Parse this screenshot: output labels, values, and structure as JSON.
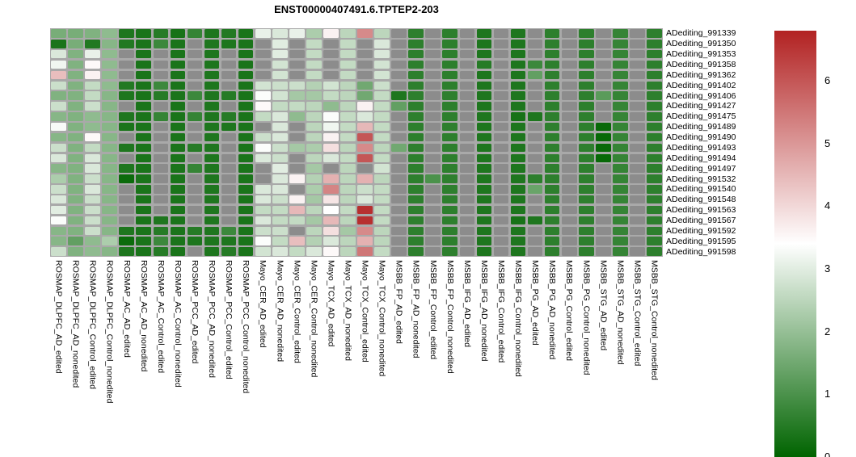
{
  "chart_data": {
    "type": "heatmap",
    "title": "ENST00000407491.6.TPTEP2-203",
    "legend_position": "right",
    "colorscale": {
      "min": 0,
      "max": 6.8,
      "white_point": 3.4,
      "low_color": "#006400",
      "mid_color": "#ffffff",
      "high_color": "#b22222",
      "missing_color": "#8c8c8c",
      "gap_color": "#a9a9a9",
      "ticks": [
        0,
        1,
        2,
        3,
        4,
        5,
        6
      ]
    },
    "rows": [
      "ADediting_991339",
      "ADediting_991350",
      "ADediting_991353",
      "ADediting_991358",
      "ADediting_991362",
      "ADediting_991402",
      "ADediting_991406",
      "ADediting_991427",
      "ADediting_991475",
      "ADediting_991489",
      "ADediting_991490",
      "ADediting_991493",
      "ADediting_991494",
      "ADediting_991497",
      "ADediting_991532",
      "ADediting_991540",
      "ADediting_991548",
      "ADediting_991563",
      "ADediting_991567",
      "ADediting_991592",
      "ADediting_991595",
      "ADediting_991598"
    ],
    "columns": [
      "ROSMAP_DLPFC_AD_edited",
      "ROSMAP_DLPFC_AD_nonedited",
      "ROSMAP_DLPFC_Control_edited",
      "ROSMAP_DLPFC_Control_nonedited",
      "ROSMAP_AC_AD_edited",
      "ROSMAP_AC_AD_nonedited",
      "ROSMAP_AC_Control_edited",
      "ROSMAP_AC_Control_nonedited",
      "ROSMAP_PCC_AD_edited",
      "ROSMAP_PCC_AD_nonedited",
      "ROSMAP_PCC_Control_edited",
      "ROSMAP_PCC_Control_nonedited",
      "Mayo_CER_AD_edited",
      "Mayo_CER_AD_nonedited",
      "Mayo_CER_Control_edited",
      "Mayo_CER_Control_nonedited",
      "Mayo_TCX_AD_edited",
      "Mayo_TCX_AD_nonedited",
      "Mayo_TCX_Control_edited",
      "Mayo_TCX_Control_nonedited",
      "MSBB_FP_AD_edited",
      "MSBB_FP_AD_nonedited",
      "MSBB_FP_Control_edited",
      "MSBB_FP_Control_nonedited",
      "MSBB_IFG_AD_edited",
      "MSBB_IFG_AD_nonedited",
      "MSBB_IFG_Control_edited",
      "MSBB_IFG_Control_nonedited",
      "MSBB_PG_AD_edited",
      "MSBB_PG_AD_nonedited",
      "MSBB_PG_Control_edited",
      "MSBB_PG_Control_nonedited",
      "MSBB_STG_AD_edited",
      "MSBB_STG_AD_nonedited",
      "MSBB_STG_Control_edited",
      "MSBB_STG_Control_nonedited"
    ],
    "values": [
      [
        1.6,
        1.6,
        1.7,
        1.9,
        0.4,
        0.35,
        0.5,
        0.3,
        0.7,
        0.4,
        0.45,
        0.35,
        3.1,
        2.9,
        3.1,
        2.3,
        3.6,
        2.5,
        5.2,
        2.5,
        null,
        0.6,
        null,
        0.6,
        null,
        0.4,
        null,
        0.4,
        null,
        0.6,
        null,
        0.6,
        null,
        0.7,
        null,
        0.6
      ],
      [
        0.35,
        1.6,
        0.45,
        1.8,
        0.45,
        0.35,
        0.8,
        0.35,
        null,
        0.4,
        0.4,
        0.35,
        null,
        3.0,
        null,
        2.6,
        null,
        2.6,
        null,
        2.9,
        null,
        0.6,
        null,
        0.6,
        null,
        0.4,
        null,
        0.4,
        null,
        0.6,
        null,
        0.6,
        null,
        0.7,
        null,
        0.6
      ],
      [
        2.9,
        1.7,
        3.1,
        1.9,
        null,
        0.35,
        null,
        0.35,
        null,
        0.4,
        null,
        0.35,
        null,
        3.0,
        null,
        2.6,
        null,
        2.6,
        null,
        2.9,
        null,
        0.6,
        null,
        0.6,
        null,
        0.4,
        null,
        0.4,
        null,
        0.6,
        null,
        0.6,
        null,
        0.7,
        null,
        0.6
      ],
      [
        3.2,
        1.7,
        3.5,
        1.9,
        null,
        0.35,
        null,
        0.35,
        null,
        0.4,
        null,
        0.35,
        null,
        2.8,
        null,
        2.6,
        null,
        2.6,
        null,
        2.8,
        null,
        0.6,
        null,
        0.6,
        null,
        0.5,
        null,
        0.4,
        0.8,
        0.6,
        null,
        0.6,
        null,
        0.7,
        null,
        0.6
      ],
      [
        4.4,
        1.7,
        3.6,
        1.9,
        null,
        0.35,
        null,
        0.35,
        null,
        0.4,
        null,
        0.35,
        null,
        2.8,
        null,
        2.6,
        null,
        2.6,
        null,
        2.8,
        null,
        0.6,
        null,
        0.6,
        null,
        0.4,
        null,
        0.4,
        1.3,
        0.6,
        null,
        0.6,
        null,
        0.7,
        null,
        0.6
      ],
      [
        2.7,
        1.7,
        2.6,
        1.9,
        0.45,
        0.35,
        0.8,
        0.35,
        null,
        0.4,
        null,
        0.35,
        2.8,
        2.7,
        2.7,
        2.4,
        2.8,
        2.5,
        1.5,
        2.7,
        null,
        0.6,
        null,
        0.6,
        null,
        0.4,
        null,
        0.4,
        null,
        0.6,
        null,
        0.6,
        null,
        0.7,
        null,
        0.6
      ],
      [
        1.7,
        1.7,
        2.6,
        1.8,
        0.4,
        0.35,
        0.5,
        0.35,
        0.8,
        0.4,
        0.5,
        0.35,
        3.35,
        2.8,
        2.2,
        2.2,
        2.6,
        2.5,
        1.5,
        2.6,
        0.4,
        0.6,
        null,
        0.6,
        null,
        0.4,
        null,
        0.4,
        null,
        0.6,
        null,
        0.6,
        1.2,
        0.7,
        null,
        0.6
      ],
      [
        2.7,
        1.7,
        2.7,
        1.8,
        null,
        0.35,
        null,
        0.35,
        null,
        0.4,
        null,
        0.35,
        3.5,
        2.6,
        2.6,
        2.5,
        1.9,
        2.5,
        3.6,
        2.6,
        1.3,
        0.6,
        null,
        0.6,
        null,
        0.4,
        null,
        0.4,
        null,
        0.6,
        null,
        0.6,
        null,
        0.7,
        null,
        0.6
      ],
      [
        1.8,
        1.7,
        1.9,
        1.8,
        0.4,
        0.35,
        0.7,
        0.35,
        0.7,
        0.4,
        0.5,
        0.35,
        2.6,
        2.9,
        1.9,
        2.5,
        3.35,
        2.6,
        2.9,
        2.6,
        null,
        0.6,
        null,
        0.6,
        null,
        0.4,
        null,
        0.3,
        0.4,
        0.6,
        null,
        0.6,
        null,
        0.7,
        null,
        0.6
      ],
      [
        3.3,
        1.7,
        1.9,
        1.8,
        0.35,
        0.35,
        null,
        0.35,
        null,
        0.4,
        0.4,
        0.35,
        null,
        2.9,
        null,
        2.5,
        3.2,
        2.6,
        4.5,
        2.6,
        null,
        0.6,
        null,
        0.6,
        null,
        0.4,
        null,
        0.4,
        null,
        0.6,
        null,
        0.6,
        0.1,
        0.7,
        null,
        0.6
      ],
      [
        1.8,
        1.7,
        3.5,
        1.8,
        null,
        0.35,
        null,
        0.35,
        null,
        0.4,
        null,
        0.35,
        2.7,
        2.9,
        null,
        2.5,
        3.6,
        2.6,
        6.0,
        2.6,
        null,
        0.6,
        null,
        0.6,
        null,
        0.4,
        null,
        0.4,
        null,
        0.6,
        null,
        0.6,
        0.1,
        0.7,
        null,
        0.6
      ],
      [
        2.7,
        1.7,
        2.6,
        1.8,
        0.4,
        0.35,
        null,
        0.35,
        0.5,
        0.4,
        null,
        0.35,
        3.35,
        2.7,
        2.2,
        2.3,
        3.9,
        2.5,
        5.2,
        2.5,
        1.5,
        0.6,
        null,
        0.6,
        null,
        0.4,
        null,
        0.4,
        null,
        0.6,
        null,
        0.6,
        0.1,
        0.7,
        null,
        0.6
      ],
      [
        2.9,
        1.7,
        2.9,
        1.8,
        null,
        0.35,
        null,
        0.35,
        null,
        0.4,
        null,
        0.35,
        2.9,
        2.7,
        null,
        2.5,
        2.9,
        2.6,
        6.0,
        2.6,
        null,
        0.6,
        null,
        0.6,
        null,
        0.4,
        null,
        0.4,
        null,
        0.6,
        null,
        0.6,
        0.1,
        0.7,
        null,
        0.6
      ],
      [
        1.8,
        1.7,
        2.9,
        1.8,
        0.4,
        0.35,
        null,
        0.35,
        0.7,
        0.4,
        null,
        0.35,
        null,
        3.0,
        null,
        2.2,
        null,
        2.5,
        null,
        2.8,
        null,
        0.6,
        null,
        0.6,
        null,
        0.4,
        null,
        0.4,
        null,
        0.6,
        null,
        0.6,
        null,
        0.7,
        null,
        0.6
      ],
      [
        2.3,
        1.7,
        2.7,
        1.8,
        0.15,
        0.35,
        null,
        0.35,
        null,
        0.4,
        null,
        0.35,
        null,
        2.9,
        3.6,
        2.4,
        4.6,
        2.5,
        4.6,
        2.5,
        null,
        0.6,
        1.0,
        0.6,
        null,
        0.4,
        null,
        0.4,
        0.6,
        0.6,
        null,
        0.6,
        null,
        0.7,
        null,
        0.6
      ],
      [
        2.7,
        1.7,
        2.9,
        1.8,
        null,
        0.35,
        null,
        0.35,
        null,
        0.4,
        null,
        0.35,
        2.9,
        2.9,
        null,
        2.3,
        5.3,
        2.5,
        2.7,
        2.6,
        null,
        0.6,
        null,
        0.6,
        null,
        0.4,
        null,
        0.4,
        1.4,
        0.6,
        null,
        0.6,
        null,
        0.7,
        null,
        0.6
      ],
      [
        2.9,
        1.7,
        2.7,
        1.8,
        null,
        0.35,
        null,
        0.35,
        null,
        0.4,
        null,
        0.35,
        2.9,
        2.7,
        3.6,
        2.2,
        3.8,
        2.5,
        2.9,
        2.6,
        null,
        0.6,
        null,
        0.6,
        null,
        0.4,
        null,
        0.4,
        null,
        0.6,
        null,
        0.6,
        null,
        0.7,
        null,
        0.6
      ],
      [
        3.0,
        1.7,
        2.7,
        1.8,
        null,
        0.35,
        null,
        0.35,
        null,
        0.4,
        null,
        0.35,
        2.6,
        2.6,
        4.5,
        2.5,
        3.4,
        2.6,
        6.6,
        2.6,
        null,
        0.6,
        null,
        0.6,
        null,
        0.4,
        null,
        0.4,
        null,
        0.6,
        null,
        0.6,
        null,
        0.7,
        null,
        0.6
      ],
      [
        3.35,
        1.7,
        2.7,
        1.8,
        null,
        0.35,
        0.4,
        0.35,
        null,
        0.4,
        null,
        0.35,
        2.9,
        2.6,
        2.6,
        2.2,
        4.5,
        2.5,
        6.6,
        2.6,
        null,
        0.6,
        null,
        0.6,
        null,
        0.4,
        null,
        0.3,
        0.4,
        0.6,
        null,
        0.6,
        null,
        0.7,
        null,
        0.6
      ],
      [
        1.8,
        1.7,
        2.7,
        1.8,
        0.4,
        0.35,
        0.5,
        0.35,
        0.5,
        0.4,
        0.8,
        0.35,
        2.7,
        2.7,
        null,
        2.5,
        3.9,
        2.2,
        5.2,
        2.5,
        null,
        0.6,
        null,
        0.6,
        null,
        0.4,
        null,
        0.4,
        null,
        0.6,
        null,
        0.6,
        null,
        0.7,
        null,
        0.6
      ],
      [
        1.8,
        1.3,
        1.9,
        2.3,
        0.15,
        0.35,
        0.8,
        0.35,
        0.4,
        0.4,
        0.4,
        0.35,
        3.35,
        2.6,
        4.4,
        2.4,
        2.9,
        2.5,
        4.6,
        2.5,
        null,
        0.6,
        null,
        0.6,
        null,
        0.4,
        null,
        0.4,
        null,
        0.6,
        null,
        0.6,
        null,
        0.7,
        null,
        0.6
      ],
      [
        2.7,
        1.7,
        1.9,
        1.8,
        0.4,
        0.35,
        0.5,
        0.35,
        null,
        0.4,
        0.5,
        0.35,
        2.8,
        2.9,
        2.6,
        2.9,
        3.5,
        2.5,
        5.5,
        2.6,
        null,
        0.6,
        null,
        0.6,
        null,
        0.4,
        null,
        0.4,
        null,
        0.6,
        null,
        0.6,
        null,
        0.7,
        null,
        0.6
      ]
    ]
  }
}
